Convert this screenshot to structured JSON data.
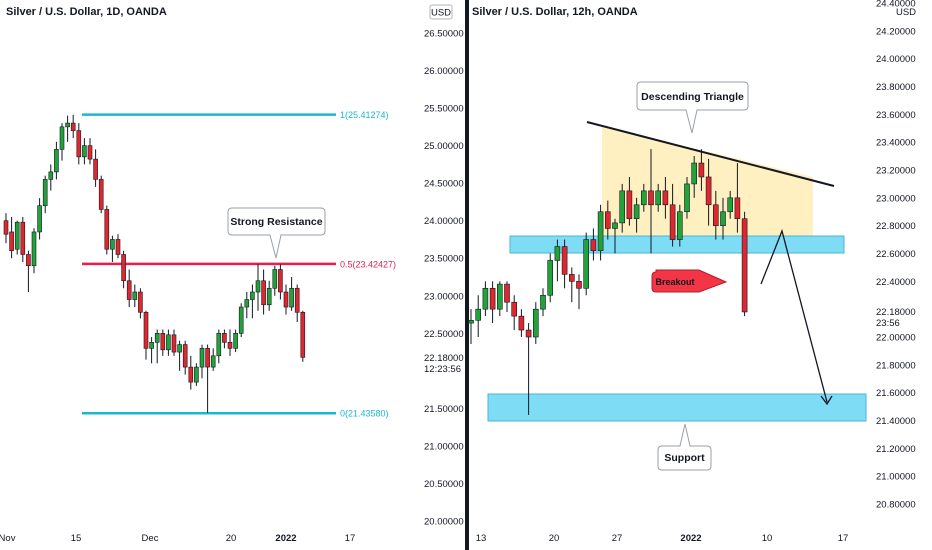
{
  "colors": {
    "up": "#22a33a",
    "down": "#e0262f",
    "teal": "#1ab8d1",
    "resistance": "#e91e4d",
    "triangle_fill": "#fff0c2",
    "zone_fill": "#7fdcf5",
    "breakout_bg": "#f23645"
  },
  "left": {
    "title": "Silver / U.S. Dollar, 1D, OANDA",
    "currency": "USD",
    "x_labels": [
      "Nov",
      "15",
      "Dec",
      "20",
      "2022",
      "17"
    ],
    "y_ticks": [
      "26.50000",
      "26.00000",
      "25.50000",
      "25.00000",
      "24.50000",
      "24.00000",
      "23.50000",
      "23.00000",
      "22.50000",
      "21.50000",
      "21.00000",
      "20.50000",
      "20.00000"
    ],
    "price_label": "22.18000",
    "countdown": "12:23:56",
    "fib_levels": [
      {
        "label": "1(25.41274)",
        "value": 25.41274
      },
      {
        "label": "0.5(23.42427)",
        "value": 23.42427
      },
      {
        "label": "0(21.43580)",
        "value": 21.4358
      }
    ],
    "annotation": "Strong Resistance"
  },
  "right": {
    "title": "Silver / U.S. Dollar, 12h, OANDA",
    "currency": "USD",
    "x_labels": [
      "13",
      "20",
      "27",
      "2022",
      "10",
      "17"
    ],
    "y_ticks": [
      "24.40000",
      "24.20000",
      "24.00000",
      "23.80000",
      "23.60000",
      "23.40000",
      "23.20000",
      "23.00000",
      "22.80000",
      "22.60000",
      "22.40000",
      "22.00000",
      "21.80000",
      "21.60000",
      "21.40000",
      "21.20000",
      "21.00000",
      "20.80000"
    ],
    "price_label": "22.18000",
    "countdown": "23:56",
    "annotation_top": "Descending Triangle",
    "annotation_bottom": "Support",
    "breakout_label": "Breakout"
  },
  "chart_data": [
    {
      "type": "candlestick",
      "title": "Silver / U.S. Dollar, 1D, OANDA",
      "ylim": [
        19.9,
        26.8
      ],
      "candles": [
        {
          "o": 24.0,
          "h": 24.1,
          "l": 23.7,
          "c": 23.82
        },
        {
          "o": 23.85,
          "h": 24.05,
          "l": 23.5,
          "c": 23.6
        },
        {
          "o": 23.62,
          "h": 24.0,
          "l": 23.55,
          "c": 23.98
        },
        {
          "o": 23.98,
          "h": 24.05,
          "l": 23.45,
          "c": 23.55
        },
        {
          "o": 23.55,
          "h": 23.6,
          "l": 23.05,
          "c": 23.4
        },
        {
          "o": 23.4,
          "h": 23.9,
          "l": 23.3,
          "c": 23.85
        },
        {
          "o": 23.85,
          "h": 24.3,
          "l": 23.75,
          "c": 24.2
        },
        {
          "o": 24.2,
          "h": 24.6,
          "l": 24.1,
          "c": 24.55
        },
        {
          "o": 24.55,
          "h": 24.75,
          "l": 24.4,
          "c": 24.65
        },
        {
          "o": 24.65,
          "h": 25.05,
          "l": 24.55,
          "c": 24.95
        },
        {
          "o": 24.95,
          "h": 25.3,
          "l": 24.8,
          "c": 25.25
        },
        {
          "o": 25.25,
          "h": 25.4,
          "l": 25.05,
          "c": 25.3
        },
        {
          "o": 25.3,
          "h": 25.41,
          "l": 25.1,
          "c": 25.2
        },
        {
          "o": 25.2,
          "h": 25.3,
          "l": 24.75,
          "c": 24.85
        },
        {
          "o": 24.85,
          "h": 25.1,
          "l": 24.75,
          "c": 25.0
        },
        {
          "o": 25.0,
          "h": 25.1,
          "l": 24.75,
          "c": 24.82
        },
        {
          "o": 24.82,
          "h": 24.95,
          "l": 24.45,
          "c": 24.55
        },
        {
          "o": 24.55,
          "h": 24.6,
          "l": 24.1,
          "c": 24.15
        },
        {
          "o": 24.15,
          "h": 24.2,
          "l": 23.55,
          "c": 23.62
        },
        {
          "o": 23.62,
          "h": 23.8,
          "l": 23.45,
          "c": 23.75
        },
        {
          "o": 23.75,
          "h": 23.82,
          "l": 23.5,
          "c": 23.55
        },
        {
          "o": 23.55,
          "h": 23.6,
          "l": 23.1,
          "c": 23.2
        },
        {
          "o": 23.2,
          "h": 23.35,
          "l": 22.85,
          "c": 22.95
        },
        {
          "o": 22.95,
          "h": 23.15,
          "l": 22.85,
          "c": 23.05
        },
        {
          "o": 23.05,
          "h": 23.1,
          "l": 22.7,
          "c": 22.78
        },
        {
          "o": 22.78,
          "h": 22.8,
          "l": 22.15,
          "c": 22.3
        },
        {
          "o": 22.3,
          "h": 22.45,
          "l": 22.1,
          "c": 22.38
        },
        {
          "o": 22.38,
          "h": 22.55,
          "l": 22.1,
          "c": 22.5
        },
        {
          "o": 22.5,
          "h": 22.55,
          "l": 22.2,
          "c": 22.28
        },
        {
          "o": 22.28,
          "h": 22.55,
          "l": 22.2,
          "c": 22.48
        },
        {
          "o": 22.48,
          "h": 22.55,
          "l": 22.2,
          "c": 22.25
        },
        {
          "o": 22.25,
          "h": 22.4,
          "l": 22.0,
          "c": 22.35
        },
        {
          "o": 22.35,
          "h": 22.4,
          "l": 21.95,
          "c": 22.05
        },
        {
          "o": 22.05,
          "h": 22.2,
          "l": 21.75,
          "c": 21.85
        },
        {
          "o": 21.85,
          "h": 22.1,
          "l": 21.8,
          "c": 22.05
        },
        {
          "o": 22.05,
          "h": 22.35,
          "l": 21.9,
          "c": 22.3
        },
        {
          "o": 22.3,
          "h": 22.35,
          "l": 21.44,
          "c": 22.05
        },
        {
          "o": 22.05,
          "h": 22.3,
          "l": 22.0,
          "c": 22.2
        },
        {
          "o": 22.2,
          "h": 22.55,
          "l": 22.1,
          "c": 22.5
        },
        {
          "o": 22.5,
          "h": 22.55,
          "l": 22.3,
          "c": 22.38
        },
        {
          "o": 22.38,
          "h": 22.55,
          "l": 22.2,
          "c": 22.3
        },
        {
          "o": 22.3,
          "h": 22.55,
          "l": 22.25,
          "c": 22.5
        },
        {
          "o": 22.5,
          "h": 22.9,
          "l": 22.45,
          "c": 22.85
        },
        {
          "o": 22.85,
          "h": 23.05,
          "l": 22.7,
          "c": 22.95
        },
        {
          "o": 22.95,
          "h": 23.15,
          "l": 22.7,
          "c": 23.05
        },
        {
          "o": 23.05,
          "h": 23.42,
          "l": 22.8,
          "c": 23.2
        },
        {
          "o": 23.2,
          "h": 23.35,
          "l": 22.75,
          "c": 22.88
        },
        {
          "o": 22.88,
          "h": 23.2,
          "l": 22.8,
          "c": 23.1
        },
        {
          "o": 23.1,
          "h": 23.4,
          "l": 23.0,
          "c": 23.35
        },
        {
          "o": 23.35,
          "h": 23.42,
          "l": 22.95,
          "c": 23.05
        },
        {
          "o": 23.05,
          "h": 23.15,
          "l": 22.75,
          "c": 22.85
        },
        {
          "o": 22.85,
          "h": 23.25,
          "l": 22.8,
          "c": 23.1
        },
        {
          "o": 23.1,
          "h": 23.15,
          "l": 22.65,
          "c": 22.78
        },
        {
          "o": 22.78,
          "h": 22.8,
          "l": 22.12,
          "c": 22.18
        }
      ],
      "fib": [
        25.41274,
        23.42427,
        21.4358
      ]
    },
    {
      "type": "candlestick",
      "title": "Silver / U.S. Dollar, 12h, OANDA",
      "ylim": [
        20.7,
        24.48
      ],
      "candles": [
        {
          "o": 22.1,
          "h": 22.2,
          "l": 21.95,
          "c": 22.12
        },
        {
          "o": 22.12,
          "h": 22.3,
          "l": 22.0,
          "c": 22.2
        },
        {
          "o": 22.2,
          "h": 22.4,
          "l": 22.15,
          "c": 22.35
        },
        {
          "o": 22.35,
          "h": 22.4,
          "l": 22.1,
          "c": 22.2
        },
        {
          "o": 22.2,
          "h": 22.4,
          "l": 22.15,
          "c": 22.38
        },
        {
          "o": 22.38,
          "h": 22.4,
          "l": 22.18,
          "c": 22.25
        },
        {
          "o": 22.25,
          "h": 22.3,
          "l": 22.05,
          "c": 22.15
        },
        {
          "o": 22.15,
          "h": 22.2,
          "l": 22.0,
          "c": 22.05
        },
        {
          "o": 22.05,
          "h": 22.1,
          "l": 21.44,
          "c": 22.0
        },
        {
          "o": 22.0,
          "h": 22.25,
          "l": 21.95,
          "c": 22.2
        },
        {
          "o": 22.2,
          "h": 22.35,
          "l": 22.15,
          "c": 22.3
        },
        {
          "o": 22.3,
          "h": 22.6,
          "l": 22.25,
          "c": 22.55
        },
        {
          "o": 22.55,
          "h": 22.7,
          "l": 22.4,
          "c": 22.65
        },
        {
          "o": 22.65,
          "h": 22.7,
          "l": 22.35,
          "c": 22.45
        },
        {
          "o": 22.45,
          "h": 22.5,
          "l": 22.25,
          "c": 22.4
        },
        {
          "o": 22.4,
          "h": 22.45,
          "l": 22.2,
          "c": 22.35
        },
        {
          "o": 22.35,
          "h": 22.75,
          "l": 22.3,
          "c": 22.7
        },
        {
          "o": 22.7,
          "h": 22.78,
          "l": 22.55,
          "c": 22.62
        },
        {
          "o": 22.62,
          "h": 22.95,
          "l": 22.55,
          "c": 22.9
        },
        {
          "o": 22.9,
          "h": 22.98,
          "l": 22.7,
          "c": 22.78
        },
        {
          "o": 22.78,
          "h": 22.85,
          "l": 22.6,
          "c": 22.82
        },
        {
          "o": 22.82,
          "h": 23.1,
          "l": 22.75,
          "c": 23.05
        },
        {
          "o": 23.05,
          "h": 23.15,
          "l": 22.8,
          "c": 22.85
        },
        {
          "o": 22.85,
          "h": 23.0,
          "l": 22.75,
          "c": 22.95
        },
        {
          "o": 22.95,
          "h": 23.1,
          "l": 22.9,
          "c": 23.05
        },
        {
          "o": 23.05,
          "h": 23.35,
          "l": 22.6,
          "c": 22.95
        },
        {
          "o": 22.95,
          "h": 23.1,
          "l": 22.9,
          "c": 23.05
        },
        {
          "o": 23.05,
          "h": 23.15,
          "l": 22.85,
          "c": 22.95
        },
        {
          "o": 22.95,
          "h": 23.1,
          "l": 22.65,
          "c": 22.7
        },
        {
          "o": 22.7,
          "h": 22.95,
          "l": 22.65,
          "c": 22.9
        },
        {
          "o": 22.9,
          "h": 23.15,
          "l": 22.85,
          "c": 23.1
        },
        {
          "o": 23.1,
          "h": 23.3,
          "l": 23.0,
          "c": 23.25
        },
        {
          "o": 23.25,
          "h": 23.35,
          "l": 23.05,
          "c": 23.15
        },
        {
          "o": 23.15,
          "h": 23.28,
          "l": 22.8,
          "c": 22.95
        },
        {
          "o": 22.95,
          "h": 23.05,
          "l": 22.7,
          "c": 22.8
        },
        {
          "o": 22.8,
          "h": 23.0,
          "l": 22.7,
          "c": 22.9
        },
        {
          "o": 22.9,
          "h": 23.05,
          "l": 22.85,
          "c": 23.0
        },
        {
          "o": 23.0,
          "h": 23.25,
          "l": 22.75,
          "c": 22.85
        },
        {
          "o": 22.85,
          "h": 22.9,
          "l": 22.15,
          "c": 22.18
        }
      ]
    }
  ]
}
